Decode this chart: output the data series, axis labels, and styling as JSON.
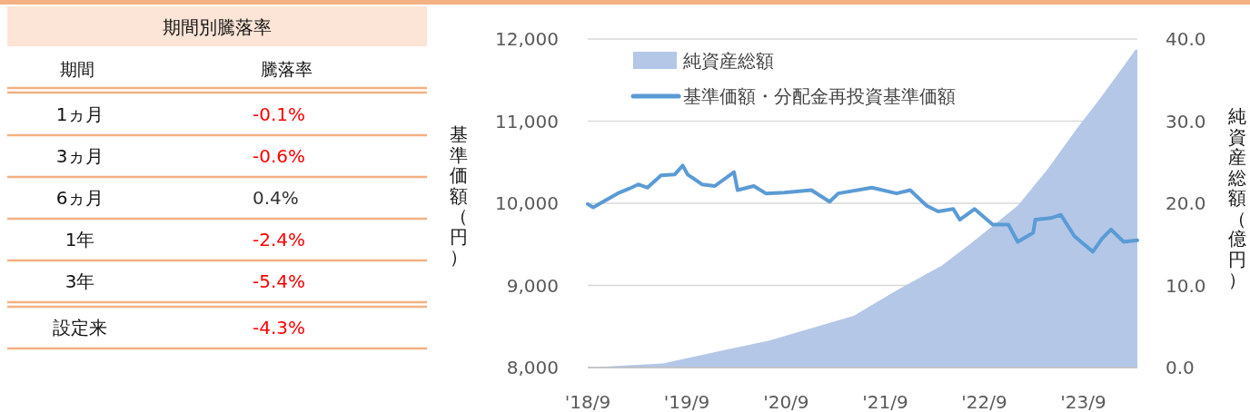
{
  "chart_data": [
    {
      "type": "other",
      "title": "期間別騰落率",
      "annotations": [
        "期間",
        "騰落率"
      ],
      "categories": [
        "1ヵ月",
        "3ヵ月",
        "6ヵ月",
        "1年",
        "3年",
        "設定来"
      ],
      "value_labels": [
        "-0.1%",
        "-0.6%",
        "0.4%",
        "-2.4%",
        "-5.4%",
        "-4.3%"
      ],
      "colors": [
        "#ff0000",
        "#ff0000",
        "#333333",
        "#ff0000",
        "#ff0000",
        "#ff0000"
      ]
    },
    {
      "type": "line",
      "ylabel": "基準価額（円）",
      "y2label": "純資産総額（億円）",
      "xlim": [
        "2018-09-01",
        "2024-03-18"
      ],
      "xticks": [
        {
          "value": "2018-09-01",
          "label": "'18/9"
        },
        {
          "value": "2019-09-01",
          "label": "'19/9"
        },
        {
          "value": "2020-09-01",
          "label": "'20/9"
        },
        {
          "value": "2021-09-01",
          "label": "'21/9"
        },
        {
          "value": "2022-09-01",
          "label": "'22/9"
        },
        {
          "value": "2023-09-01",
          "label": "'23/9"
        }
      ],
      "ylim": [
        8000,
        12000
      ],
      "yticks": [
        {
          "value": 8000,
          "label": "8,000"
        },
        {
          "value": 9000,
          "label": "9,000"
        },
        {
          "value": 10000,
          "label": "10,000"
        },
        {
          "value": 11000,
          "label": "11,000"
        },
        {
          "value": 12000,
          "label": "12,000"
        }
      ],
      "y2lim": [
        0,
        40
      ],
      "y2ticks": [
        {
          "value": 0,
          "label": "0.0"
        },
        {
          "value": 10,
          "label": "10.0"
        },
        {
          "value": 20,
          "label": "20.0"
        },
        {
          "value": 30,
          "label": "30.0"
        },
        {
          "value": 40,
          "label": "40.0"
        }
      ],
      "grid": "y",
      "legend": "top left",
      "series": [
        {
          "name": "純資産総額",
          "type": "area",
          "axis": "y2",
          "color": "#b4c7e7",
          "x": [
            "2018-09-01",
            "2019-06-05",
            "2019-11-20",
            "2020-07-01",
            "2021-05-08",
            "2021-10-13",
            "2022-03-28",
            "2022-07-17",
            "2023-01-02",
            "2023-04-21",
            "2023-08-13",
            "2023-10-29",
            "2024-01-28",
            "2024-03-11",
            "2024-03-18"
          ],
          "values": [
            0,
            0.5,
            1.7,
            3.3,
            6.3,
            9.4,
            12.4,
            15.2,
            19.7,
            24.1,
            29.3,
            32.6,
            36.7,
            38.7,
            38.7
          ]
        },
        {
          "name": "基準価額・分配金再投資基準価額",
          "type": "line",
          "color": "#5b9bd5",
          "x": [
            "2018-09-01",
            "2018-09-21",
            "2018-12-20",
            "2019-02-02",
            "2019-03-06",
            "2019-04-09",
            "2019-05-29",
            "2019-07-18",
            "2019-08-17",
            "2019-09-04",
            "2019-10-27",
            "2019-12-13",
            "2020-02-22",
            "2020-03-06",
            "2020-05-05",
            "2020-06-18",
            "2020-08-24",
            "2020-12-03",
            "2021-02-08",
            "2021-03-12",
            "2021-07-14",
            "2021-10-13",
            "2021-12-02",
            "2022-02-01",
            "2022-03-15",
            "2022-05-10",
            "2022-06-03",
            "2022-07-27",
            "2022-10-02",
            "2022-11-29",
            "2023-01-02",
            "2023-02-28",
            "2023-03-08",
            "2023-05-04",
            "2023-06-10",
            "2023-07-30",
            "2023-10-06",
            "2023-11-09",
            "2023-12-12",
            "2024-01-28",
            "2024-03-18"
          ],
          "values": [
            9990,
            9950,
            10120,
            10180,
            10230,
            10190,
            10340,
            10350,
            10460,
            10350,
            10230,
            10210,
            10380,
            10160,
            10210,
            10120,
            10130,
            10160,
            10020,
            10120,
            10190,
            10120,
            10160,
            9970,
            9900,
            9930,
            9800,
            9930,
            9740,
            9740,
            9530,
            9640,
            9800,
            9820,
            9860,
            9600,
            9410,
            9570,
            9680,
            9530,
            9550
          ]
        }
      ]
    }
  ]
}
